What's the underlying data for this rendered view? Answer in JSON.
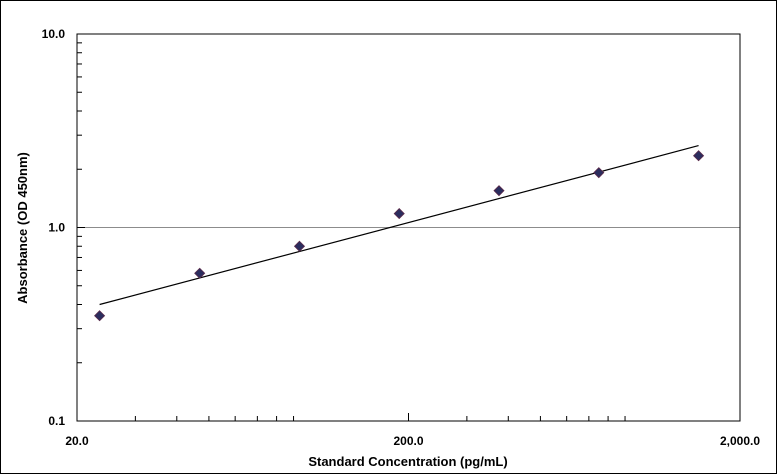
{
  "chart_data": {
    "type": "scatter",
    "title": "",
    "xlabel": "Standard Concentration (pg/mL)",
    "ylabel": "Absorbance (OD 450nm)",
    "x_scale": "log",
    "y_scale": "log",
    "xlim": [
      20,
      2000
    ],
    "ylim": [
      0.1,
      10
    ],
    "x_ticks": [
      {
        "value": 20,
        "label": "20.0"
      },
      {
        "value": 200,
        "label": "200.0"
      },
      {
        "value": 2000,
        "label": "2,000.0"
      }
    ],
    "y_ticks": [
      {
        "value": 10,
        "label": "10.0"
      },
      {
        "value": 1,
        "label": "1.0"
      },
      {
        "value": 0.1,
        "label": "0.1"
      }
    ],
    "grid": "horizontal at y=1.0",
    "points": [
      {
        "x": 23.4,
        "y": 0.35
      },
      {
        "x": 46.9,
        "y": 0.58
      },
      {
        "x": 93.8,
        "y": 0.8
      },
      {
        "x": 187.5,
        "y": 1.18
      },
      {
        "x": 375,
        "y": 1.55
      },
      {
        "x": 750,
        "y": 1.92
      },
      {
        "x": 1500,
        "y": 2.35
      }
    ],
    "fit_line": [
      {
        "x": 23.4,
        "y": 0.4
      },
      {
        "x": 1500,
        "y": 2.65
      }
    ],
    "marker_color": "#2b2d5e",
    "line_color": "#000000"
  }
}
